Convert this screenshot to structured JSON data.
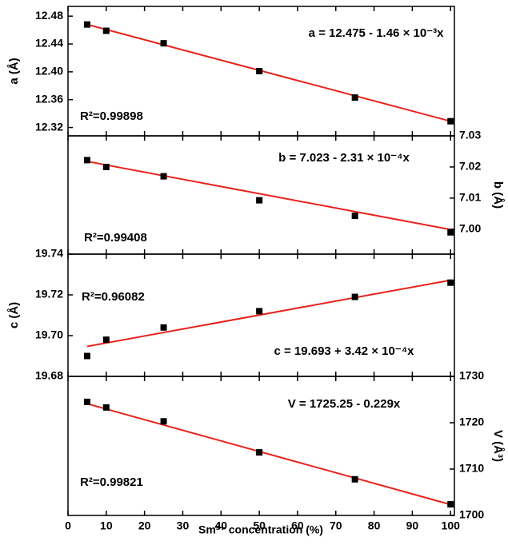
{
  "chart_data": [
    {
      "type": "scatter",
      "y_label": "a (Å)",
      "y_axis_side": "left",
      "x": [
        5,
        10,
        25,
        50,
        75,
        100
      ],
      "values": [
        12.468,
        12.459,
        12.441,
        12.401,
        12.363,
        12.329
      ],
      "color": "#000000",
      "fit": {
        "x": [
          5,
          100
        ],
        "values": [
          12.468,
          12.329
        ],
        "color": "#e8231c"
      },
      "ylim": [
        12.308,
        12.494
      ],
      "yticks": [
        12.32,
        12.36,
        {
          "value": 12.4,
          "label": "12.40"
        },
        12.44,
        12.48
      ],
      "equation": "a = 12.475 - 1.46 × 10⁻³x",
      "r_squared": "R²=0.99898"
    },
    {
      "type": "scatter",
      "y_label": "b (Å)",
      "y_axis_side": "right",
      "x": [
        5,
        10,
        25,
        50,
        75,
        100
      ],
      "values": [
        7.0222,
        7.02,
        7.017,
        7.0093,
        7.0043,
        6.999
      ],
      "color": "#000000",
      "fit": {
        "x": [
          5,
          100
        ],
        "values": [
          7.0218,
          6.9999
        ],
        "color": "#e8231c"
      },
      "ylim": [
        6.992,
        7.03
      ],
      "yticks": [
        {
          "value": 7.0,
          "label": "7.00"
        },
        7.01,
        7.02,
        7.03
      ],
      "equation": "b = 7.023 - 2.31 × 10⁻⁴x",
      "r_squared": "R²=0.99408"
    },
    {
      "type": "scatter",
      "y_label": "c (Å)",
      "y_axis_side": "left",
      "x": [
        5,
        10,
        25,
        50,
        75,
        100
      ],
      "values": [
        19.69,
        19.698,
        19.704,
        19.712,
        19.719,
        19.726
      ],
      "color": "#000000",
      "fit": {
        "x": [
          5,
          100
        ],
        "values": [
          19.6947,
          19.7272
        ],
        "color": "#e8231c"
      },
      "ylim": [
        19.68,
        19.74
      ],
      "yticks": [
        19.68,
        {
          "value": 19.7,
          "label": "19.70"
        },
        19.72,
        19.74
      ],
      "equation": "c = 19.693 + 3.42 × 10⁻⁴x",
      "r_squared": "R²=0.96082"
    },
    {
      "type": "scatter",
      "y_label": "V (Å³)",
      "y_axis_side": "right",
      "x": [
        5,
        10,
        25,
        50,
        75,
        100
      ],
      "values": [
        1724.5,
        1723.3,
        1720.3,
        1713.6,
        1707.8,
        1702.4
      ],
      "color": "#000000",
      "fit": {
        "x": [
          5,
          100
        ],
        "values": [
          1724.1,
          1702.35
        ],
        "color": "#e8231c"
      },
      "ylim": [
        1700,
        1730
      ],
      "yticks": [
        1700,
        1710,
        1720,
        1730
      ],
      "equation": "V = 1725.25 - 0.229x",
      "r_squared": "R²=0.99821",
      "x_label": "Sm³⁺ concentration (%)",
      "xlim": [
        0,
        101
      ],
      "xticks": [
        0,
        10,
        20,
        30,
        40,
        50,
        60,
        70,
        80,
        90,
        100
      ]
    }
  ]
}
